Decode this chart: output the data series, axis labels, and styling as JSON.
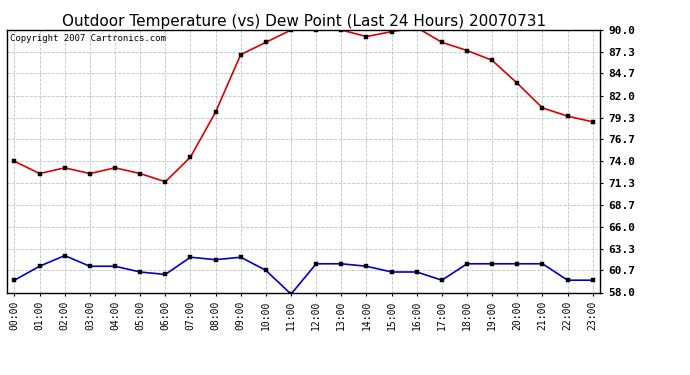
{
  "title": "Outdoor Temperature (vs) Dew Point (Last 24 Hours) 20070731",
  "copyright_text": "Copyright 2007 Cartronics.com",
  "x_labels": [
    "00:00",
    "01:00",
    "02:00",
    "03:00",
    "04:00",
    "05:00",
    "06:00",
    "07:00",
    "08:00",
    "09:00",
    "10:00",
    "11:00",
    "12:00",
    "13:00",
    "14:00",
    "15:00",
    "16:00",
    "17:00",
    "18:00",
    "19:00",
    "20:00",
    "21:00",
    "22:00",
    "23:00"
  ],
  "temp_data": [
    74.0,
    72.5,
    73.2,
    72.5,
    73.2,
    72.5,
    71.5,
    74.5,
    80.0,
    87.0,
    88.5,
    90.0,
    90.0,
    90.0,
    89.2,
    89.8,
    90.3,
    88.5,
    87.5,
    86.3,
    83.5,
    80.5,
    79.5,
    78.8
  ],
  "dew_data": [
    59.5,
    61.2,
    62.5,
    61.2,
    61.2,
    60.5,
    60.2,
    62.3,
    62.0,
    62.3,
    60.7,
    57.8,
    61.5,
    61.5,
    61.2,
    60.5,
    60.5,
    59.5,
    61.5,
    61.5,
    61.5,
    61.5,
    59.5,
    59.5
  ],
  "temp_color": "#dd0000",
  "dew_color": "#0000cc",
  "bg_color": "#ffffff",
  "grid_color": "#bbbbbb",
  "title_fontsize": 11,
  "copyright_fontsize": 6.5,
  "xtick_fontsize": 7,
  "ytick_fontsize": 8,
  "ytick_labels": [
    "58.0",
    "60.7",
    "63.3",
    "66.0",
    "68.7",
    "71.3",
    "74.0",
    "76.7",
    "79.3",
    "82.0",
    "84.7",
    "87.3",
    "90.0"
  ],
  "ytick_values": [
    58.0,
    60.7,
    63.3,
    66.0,
    68.7,
    71.3,
    74.0,
    76.7,
    79.3,
    82.0,
    84.7,
    87.3,
    90.0
  ],
  "ylim_min": 58.0,
  "ylim_max": 90.0
}
